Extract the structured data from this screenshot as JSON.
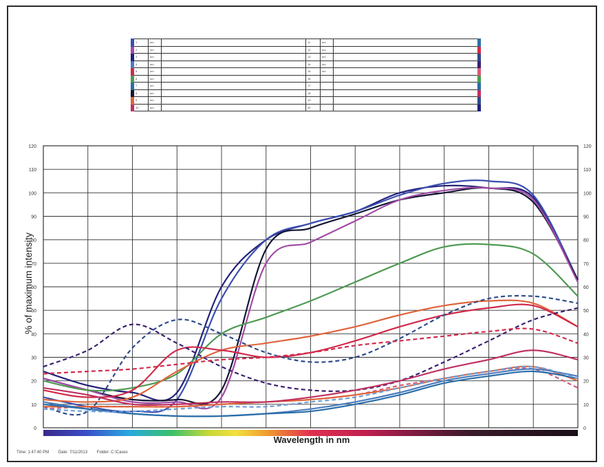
{
  "chart_data": {
    "type": "line",
    "ylabel": "% of maximum intensity",
    "xlabel": "Wavelength in nm",
    "ylim": [
      0,
      120
    ],
    "yticks": [
      0,
      10,
      20,
      30,
      40,
      50,
      60,
      70,
      80,
      90,
      100,
      110,
      120
    ],
    "x_points": 13,
    "grid": true,
    "spectrum_bar": true,
    "series": [
      {
        "color": "#23217a",
        "style": "solid",
        "values": [
          24,
          18,
          15,
          15,
          60,
          80,
          87,
          92,
          100,
          103,
          102,
          98,
          63
        ]
      },
      {
        "color": "#3b4fb0",
        "style": "solid",
        "values": [
          13,
          9,
          7,
          12,
          55,
          80,
          87,
          92,
          99,
          104,
          105,
          99,
          63
        ]
      },
      {
        "color": "#141633",
        "style": "solid",
        "values": [
          21,
          16,
          12,
          12,
          16,
          76,
          85,
          91,
          97,
          100,
          102,
          96,
          63
        ]
      },
      {
        "color": "#a24aa6",
        "style": "solid",
        "values": [
          21,
          16,
          11,
          11,
          13,
          70,
          79,
          88,
          97,
          101,
          102,
          97,
          62
        ]
      },
      {
        "color": "#4e9a52",
        "style": "solid",
        "values": [
          20,
          16,
          17,
          23,
          40,
          47,
          54,
          62,
          70,
          77,
          78,
          74,
          56
        ]
      },
      {
        "color": "#e0643c",
        "style": "solid",
        "values": [
          12,
          11,
          13,
          24,
          33,
          36,
          39,
          43,
          48,
          52,
          54,
          53,
          43
        ]
      },
      {
        "color": "#d1294a",
        "style": "solid",
        "values": [
          16,
          13,
          16,
          33,
          33,
          30,
          32,
          37,
          43,
          48,
          51,
          52,
          43
        ]
      },
      {
        "color": "#2d4b8c",
        "style": "dashed",
        "values": [
          9,
          7,
          34,
          46,
          40,
          32,
          28,
          30,
          38,
          48,
          55,
          56,
          53
        ]
      },
      {
        "color": "#3b2070",
        "style": "dashed",
        "values": [
          26,
          33,
          44,
          36,
          26,
          19,
          16,
          16,
          20,
          28,
          37,
          46,
          51
        ]
      },
      {
        "color": "#d1294a",
        "style": "dashed",
        "values": [
          23,
          24,
          25,
          27,
          29,
          30,
          32,
          35,
          37,
          39,
          41,
          42,
          36
        ]
      },
      {
        "color": "#d65a78",
        "style": "dashed",
        "values": [
          8,
          9,
          9,
          9,
          10,
          11,
          12,
          14,
          18,
          21,
          24,
          25,
          17
        ]
      },
      {
        "color": "#e0643c",
        "style": "solid",
        "values": [
          9,
          9,
          9,
          9,
          10,
          11,
          12,
          14,
          17,
          21,
          24,
          26,
          20
        ]
      },
      {
        "color": "#c03060",
        "style": "solid",
        "values": [
          17,
          14,
          10,
          10,
          11,
          11,
          13,
          16,
          20,
          25,
          29,
          33,
          29
        ]
      },
      {
        "color": "#4a7cc0",
        "style": "solid",
        "values": [
          11,
          8,
          6,
          5,
          5,
          6,
          8,
          11,
          15,
          20,
          23,
          25,
          22
        ]
      },
      {
        "color": "#2a6ea8",
        "style": "solid",
        "values": [
          10,
          8,
          6,
          5,
          5,
          6,
          7,
          10,
          14,
          19,
          22,
          24,
          21
        ]
      },
      {
        "color": "#6a9ed8",
        "style": "dashed",
        "values": [
          8,
          7,
          7,
          8,
          9,
          9,
          11,
          13,
          17,
          21,
          24,
          26,
          21
        ]
      }
    ]
  },
  "legend": {
    "rows": [
      {
        "n": "1",
        "u": "nm",
        "name": "",
        "n2": "11",
        "u2": "nm",
        "name2": "",
        "c": "#3b4fb0",
        "c2": "#2a6ea8"
      },
      {
        "n": "2",
        "u": "nm",
        "name": "",
        "n2": "12",
        "u2": "nm",
        "name2": "",
        "c": "#a24aa6",
        "c2": "#d1294a"
      },
      {
        "n": "3",
        "u": "nm",
        "name": "",
        "n2": "13",
        "u2": "nm",
        "name2": "",
        "c": "#23217a",
        "c2": "#2d4b8c"
      },
      {
        "n": "4",
        "u": "nm",
        "name": "",
        "n2": "14",
        "u2": "nm",
        "name2": "",
        "c": "#4a7cc0",
        "c2": "#3b2070"
      },
      {
        "n": "5",
        "u": "nm",
        "name": "",
        "n2": "15",
        "u2": "nm",
        "name2": "",
        "c": "#d1294a",
        "c2": "#d65a78"
      },
      {
        "n": "6",
        "u": "nm",
        "name": "",
        "n2": "16",
        "u2": "",
        "name2": "",
        "c": "#4e9a52",
        "c2": "#4e9a52"
      },
      {
        "n": "7",
        "u": "nm",
        "name": "",
        "n2": "17",
        "u2": "",
        "name2": "",
        "c": "#2a6ea8",
        "c2": "#2a6ea8"
      },
      {
        "n": "8",
        "u": "nm",
        "name": "",
        "n2": "18",
        "u2": "",
        "name2": "",
        "c": "#141633",
        "c2": "#c03060"
      },
      {
        "n": "9",
        "u": "nm",
        "name": "",
        "n2": "19",
        "u2": "",
        "name2": "",
        "c": "#e0643c",
        "c2": "#2d4b8c"
      },
      {
        "n": "10",
        "u": "nm",
        "name": "",
        "n2": "20",
        "u2": "",
        "name2": "",
        "c": "#c03060",
        "c2": "#23217a"
      }
    ]
  },
  "footer": {
    "time": "Time: 1:47:40 PM",
    "date": "Date: 7/11/2013",
    "folder": "Folder: C:\\Cases"
  },
  "colors": {
    "grid": "#333333",
    "frame": "#2a2a2a"
  }
}
